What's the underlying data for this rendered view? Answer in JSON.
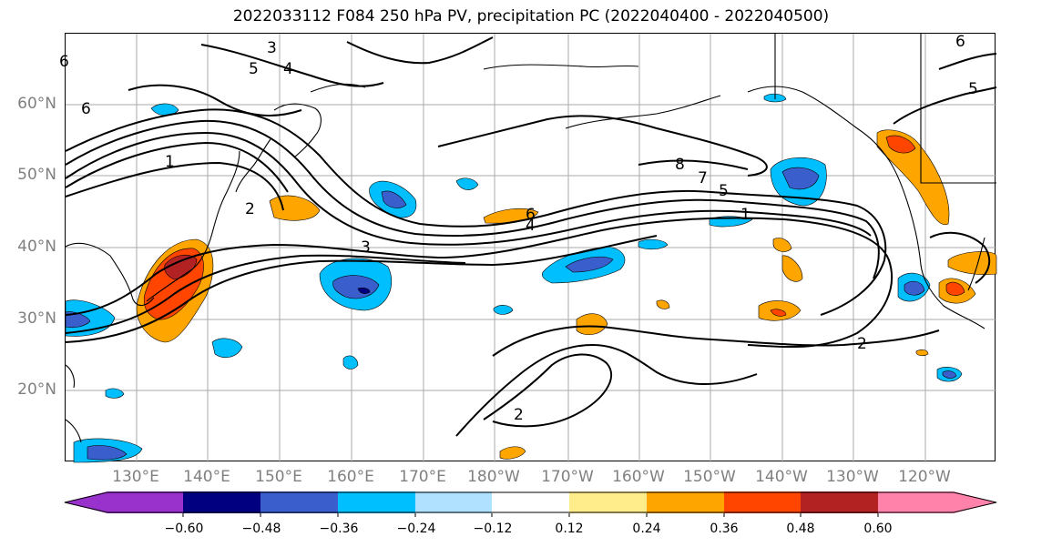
{
  "title": "2022033112 F084 250 hPa PV, precipitation PC (2022040400 - 2022040500)",
  "lat_labels": [
    "60°N",
    "50°N",
    "40°N",
    "30°N",
    "20°N"
  ],
  "lon_labels": [
    "130°E",
    "140°E",
    "150°E",
    "160°E",
    "170°E",
    "180°W",
    "170°W",
    "160°W",
    "150°W",
    "140°W",
    "130°W",
    "120°W"
  ],
  "contour_labels": [
    "3",
    "5",
    "4",
    "6",
    "1",
    "2",
    "3",
    "8",
    "7",
    "5",
    "6",
    "4",
    "1",
    "2",
    "2",
    "6",
    "5",
    "6"
  ],
  "colorbar": {
    "ticks": [
      "−0.60",
      "−0.48",
      "−0.36",
      "−0.24",
      "−0.12",
      "0.12",
      "0.24",
      "0.36",
      "0.48",
      "0.60"
    ],
    "colors": [
      "#9932cc",
      "#000080",
      "#3a5fcd",
      "#00bfff",
      "#b0e2ff",
      "#ffffff",
      "#ffec8b",
      "#ffa500",
      "#ff4500",
      "#b22222",
      "#ff82ab"
    ]
  }
}
